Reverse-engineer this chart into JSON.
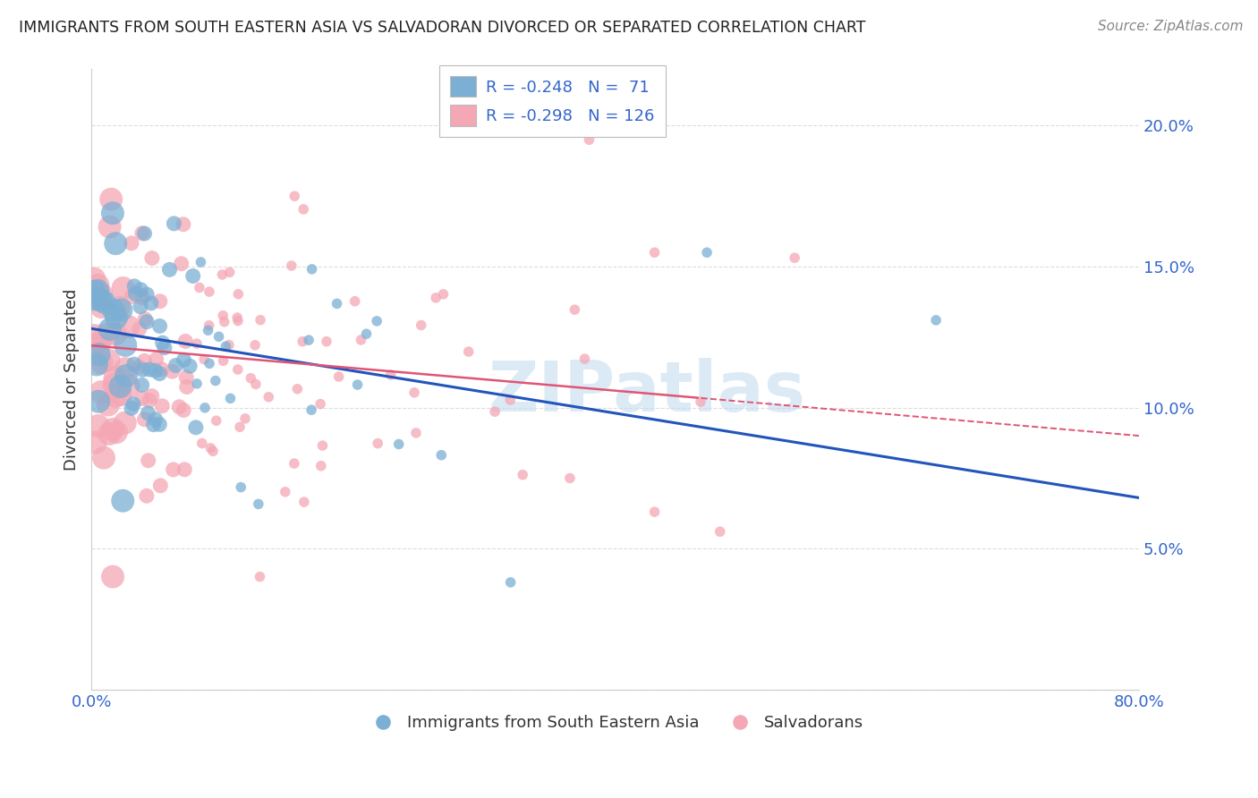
{
  "title": "IMMIGRANTS FROM SOUTH EASTERN ASIA VS SALVADORAN DIVORCED OR SEPARATED CORRELATION CHART",
  "source": "Source: ZipAtlas.com",
  "ylabel": "Divorced or Separated",
  "legend_blue_label": "Immigrants from South Eastern Asia",
  "legend_pink_label": "Salvadorans",
  "blue_R": -0.248,
  "blue_N": 71,
  "pink_R": -0.298,
  "pink_N": 126,
  "xlim": [
    0.0,
    0.8
  ],
  "ylim": [
    0.0,
    0.22
  ],
  "x_ticks": [
    0.0,
    0.1,
    0.2,
    0.3,
    0.4,
    0.5,
    0.6,
    0.7,
    0.8
  ],
  "y_ticks": [
    0.0,
    0.05,
    0.1,
    0.15,
    0.2
  ],
  "blue_color": "#7BAFD4",
  "pink_color": "#F4A7B5",
  "blue_line_color": "#2255BB",
  "pink_line_color": "#E05575",
  "watermark": "ZIPatlas",
  "watermark_color": "#C5DCF0",
  "background_color": "#FFFFFF",
  "grid_color": "#DDDDDD",
  "title_color": "#222222",
  "axis_label_color": "#333333",
  "tick_label_color": "#3366CC",
  "legend_text_color": "#3366CC",
  "blue_intercept": 0.128,
  "blue_slope": -0.075,
  "pink_intercept": 0.122,
  "pink_slope": -0.04
}
